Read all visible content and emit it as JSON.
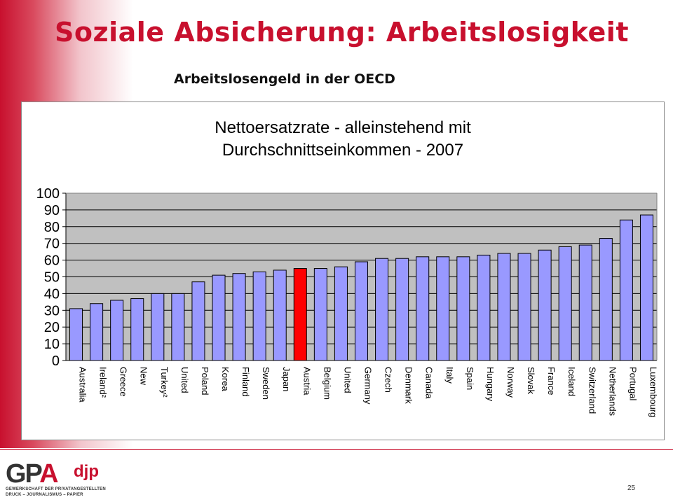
{
  "slide": {
    "title": "Soziale Absicherung: Arbeitslosigkeit",
    "subtitle": "Arbeitslosengeld in der OECD",
    "page_number": "25"
  },
  "logo": {
    "main_left": "GP",
    "main_accent": "A",
    "sub": "djp",
    "line1": "GEWERKSCHAFT DER PRIVATANGESTELLTEN",
    "line2": "DRUCK – JOURNALISMUS – PAPIER"
  },
  "chart_data": {
    "type": "bar",
    "title": [
      "Nettoersatzrate - alleinstehend mit",
      "Durchschnittseinkommen - 2007"
    ],
    "categories": [
      "Australia",
      "Ireland²",
      "Greece",
      "New",
      "Turkey²",
      "United",
      "Poland",
      "Korea",
      "Finland",
      "Sweden",
      "Japan",
      "Austria",
      "Belgium",
      "United",
      "Germany",
      "Czech",
      "Denmark",
      "Canada",
      "Italy",
      "Spain",
      "Hungary",
      "Norway",
      "Slovak",
      "France",
      "Iceland",
      "Switzerland",
      "Netherlands",
      "Portugal",
      "Luxembourg"
    ],
    "values": [
      31,
      34,
      36,
      37,
      40,
      40,
      47,
      51,
      52,
      53,
      54,
      55,
      55,
      56,
      59,
      61,
      61,
      62,
      62,
      62,
      63,
      64,
      64,
      66,
      68,
      69,
      73,
      84,
      87
    ],
    "highlight": "Austria",
    "colors": {
      "bar": "#9999ff",
      "highlight": "#ff0000",
      "plot_background": "#c0c0c0"
    },
    "ylim": [
      0,
      100
    ],
    "yticks": [
      0,
      10,
      20,
      30,
      40,
      50,
      60,
      70,
      80,
      90,
      100
    ],
    "grid": true,
    "xlabel": "",
    "ylabel": ""
  }
}
